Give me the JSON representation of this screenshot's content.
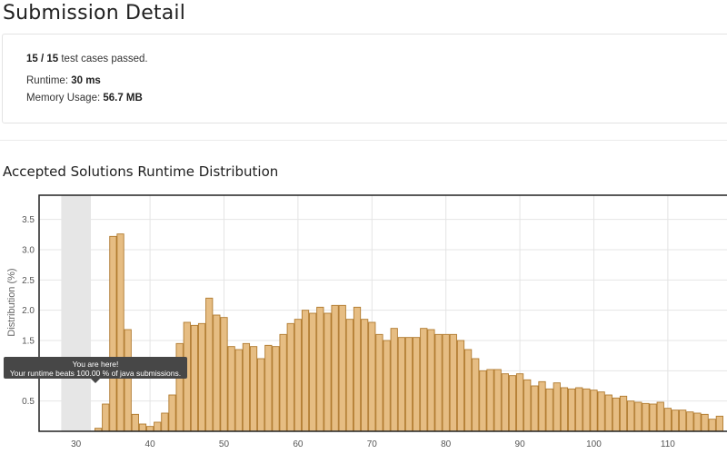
{
  "page": {
    "title": "Submission Detail"
  },
  "summary": {
    "passed": "15 / 15",
    "passed_suffix": " test cases passed.",
    "runtime_label": "Runtime: ",
    "runtime_value": "30 ms",
    "memory_label": "Memory Usage: ",
    "memory_value": "56.7 MB"
  },
  "section": {
    "title": "Accepted Solutions Runtime Distribution"
  },
  "tooltip": {
    "line1": "You are here!",
    "line2": "Your runtime beats 100.00 % of java submissions."
  },
  "colors": {
    "bar_fill": "#e6bd83",
    "bar_stroke": "#b07a2e",
    "highlight": "#e6e6e6",
    "grid": "#e4e4e4"
  },
  "chart_data": {
    "type": "bar",
    "title": "Accepted Solutions Runtime Distribution",
    "xlabel": "",
    "ylabel": "Distribution (%)",
    "xlim": [
      25,
      118
    ],
    "ylim": [
      0,
      3.9
    ],
    "xticks": [
      30,
      40,
      50,
      60,
      70,
      80,
      90,
      100,
      110
    ],
    "yticks": [
      0.5,
      1.0,
      1.5,
      2.0,
      2.5,
      3.0,
      3.5
    ],
    "ytick_labels": [
      "0.5",
      "1.0",
      "1.5",
      "2.0",
      "2.5",
      "3.0",
      "3.5"
    ],
    "highlight_range": [
      28,
      32
    ],
    "grid": true,
    "x": [
      33,
      34,
      35,
      36,
      37,
      38,
      39,
      40,
      41,
      42,
      43,
      44,
      45,
      46,
      47,
      48,
      49,
      50,
      51,
      52,
      53,
      54,
      55,
      56,
      57,
      58,
      59,
      60,
      61,
      62,
      63,
      64,
      65,
      66,
      67,
      68,
      69,
      70,
      71,
      72,
      73,
      74,
      75,
      76,
      77,
      78,
      79,
      80,
      81,
      82,
      83,
      84,
      85,
      86,
      87,
      88,
      89,
      90,
      91,
      92,
      93,
      94,
      95,
      96,
      97,
      98,
      99,
      100,
      101,
      102,
      103,
      104,
      105,
      106,
      107,
      108,
      109,
      110,
      111,
      112,
      113,
      114,
      115,
      116,
      117
    ],
    "values": [
      0.05,
      0.45,
      3.22,
      3.26,
      1.68,
      0.28,
      0.12,
      0.08,
      0.15,
      0.3,
      0.6,
      1.45,
      1.8,
      1.75,
      1.78,
      2.2,
      1.92,
      1.88,
      1.4,
      1.35,
      1.45,
      1.4,
      1.2,
      1.42,
      1.4,
      1.6,
      1.78,
      1.85,
      2.0,
      1.95,
      2.05,
      1.95,
      2.08,
      2.08,
      1.85,
      2.05,
      1.85,
      1.8,
      1.6,
      1.5,
      1.7,
      1.55,
      1.55,
      1.55,
      1.7,
      1.68,
      1.6,
      1.6,
      1.6,
      1.5,
      1.35,
      1.2,
      1.0,
      1.02,
      1.02,
      0.95,
      0.92,
      0.95,
      0.85,
      0.75,
      0.82,
      0.7,
      0.8,
      0.72,
      0.7,
      0.72,
      0.7,
      0.68,
      0.65,
      0.6,
      0.55,
      0.58,
      0.5,
      0.48,
      0.46,
      0.45,
      0.48,
      0.38,
      0.35,
      0.35,
      0.32,
      0.3,
      0.28,
      0.2,
      0.25
    ]
  }
}
